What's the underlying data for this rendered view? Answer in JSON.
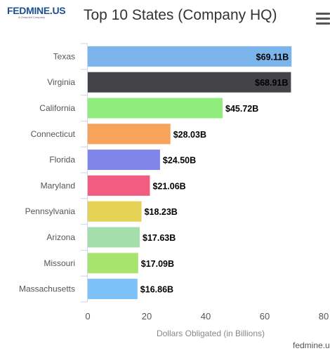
{
  "brand": {
    "logo_text": "FEDMINE.US",
    "logo_sub": "A Onepoint Company",
    "footer": "fedmine.us"
  },
  "menu": {
    "icon": "hamburger-icon"
  },
  "chart_data": {
    "type": "bar",
    "orientation": "horizontal",
    "title": "Top 10 States (Company HQ)",
    "xlabel": "Dollars Obligated (in Billions)",
    "ylabel": "",
    "xlim": [
      0,
      80
    ],
    "xticks": [
      "0",
      "20",
      "40",
      "60",
      "80"
    ],
    "grid": false,
    "legend": "none",
    "categories": [
      "Texas",
      "Virginia",
      "California",
      "Connecticut",
      "Florida",
      "Maryland",
      "Pennsylvania",
      "Arizona",
      "Missouri",
      "Massachusetts"
    ],
    "values": [
      69.11,
      68.91,
      45.72,
      28.03,
      24.5,
      21.06,
      18.23,
      17.63,
      17.09,
      16.86
    ],
    "labels": [
      "$69.11B",
      "$68.91B",
      "$45.72B",
      "$28.03B",
      "$24.50B",
      "$21.06B",
      "$18.23B",
      "$17.63B",
      "$17.09B",
      "$16.86B"
    ],
    "colors": [
      "#7cb5ec",
      "#434348",
      "#90ed7d",
      "#f7a35c",
      "#8085e9",
      "#f15c80",
      "#e4d354",
      "#a4deaa",
      "#a6e46b",
      "#7cc2f9"
    ]
  }
}
